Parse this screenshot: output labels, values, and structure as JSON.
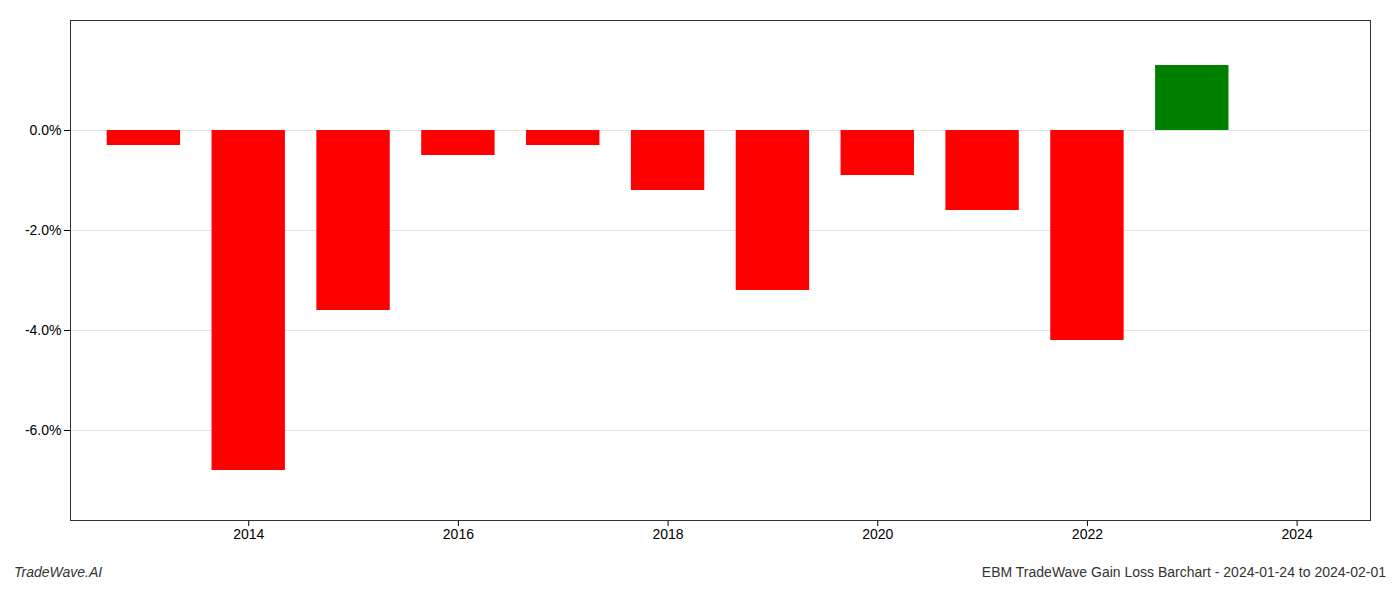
{
  "chart_data": {
    "type": "bar",
    "title": "EBM TradeWave Gain Loss Barchart - 2024-01-24 to 2024-02-01",
    "annotations": [
      "TradeWave.AI"
    ],
    "x": [
      2013,
      2014,
      2015,
      2016,
      2017,
      2018,
      2019,
      2020,
      2021,
      2022,
      2023
    ],
    "values": [
      -0.003,
      -0.068,
      -0.036,
      -0.005,
      -0.003,
      -0.012,
      -0.032,
      -0.009,
      -0.016,
      -0.042,
      0.013
    ],
    "colors": [
      "#ff0000",
      "#ff0000",
      "#ff0000",
      "#ff0000",
      "#ff0000",
      "#ff0000",
      "#ff0000",
      "#ff0000",
      "#ff0000",
      "#ff0000",
      "#008000"
    ],
    "xlim": [
      2012.3,
      2024.7
    ],
    "xticks": [
      2014,
      2016,
      2018,
      2020,
      2022,
      2024
    ],
    "ylim": [
      -0.078,
      0.022
    ],
    "yticks": [
      {
        "value": -0.06,
        "label": "-6.0%"
      },
      {
        "value": -0.04,
        "label": "-4.0%"
      },
      {
        "value": -0.02,
        "label": "-2.0%"
      },
      {
        "value": 0.0,
        "label": "0.0%"
      }
    ],
    "grid": true
  }
}
